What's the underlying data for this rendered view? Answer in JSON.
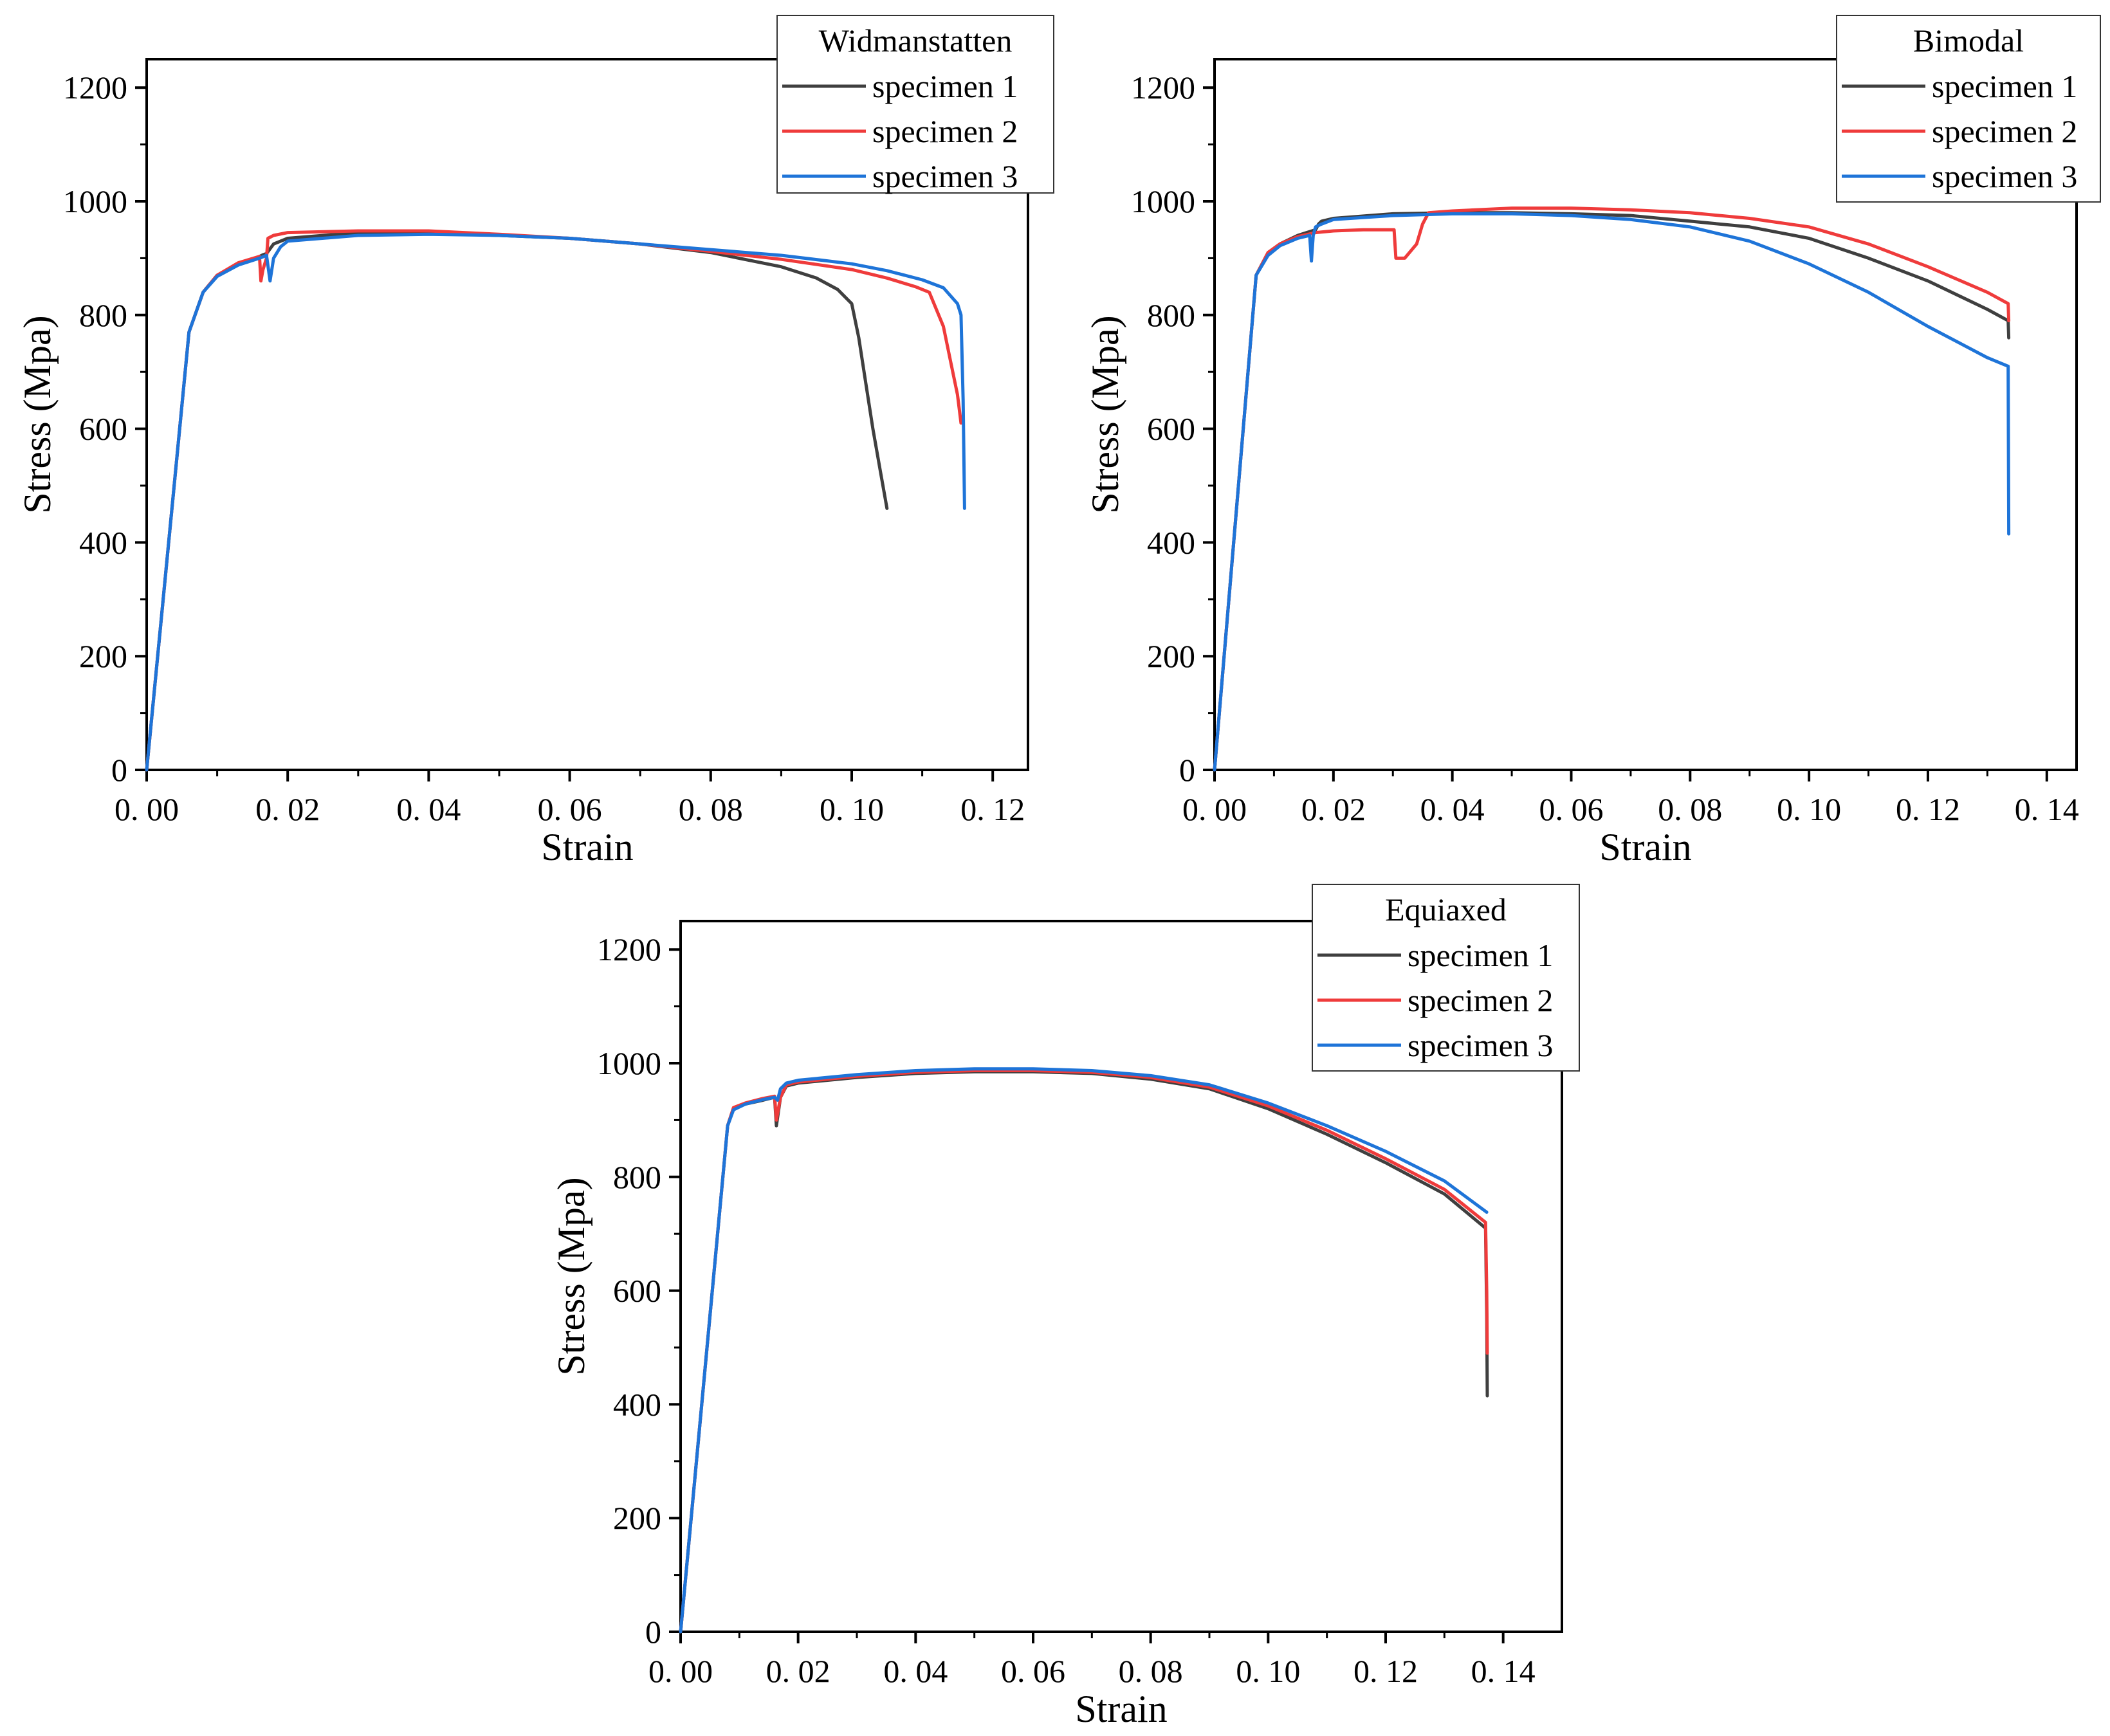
{
  "chart_data": [
    {
      "type": "line",
      "xlabel": "Strain",
      "ylabel": "Stress (Mpa)",
      "xlim": [
        0,
        0.125
      ],
      "ylim": [
        0,
        1250
      ],
      "xticks": [
        0,
        0.02,
        0.04,
        0.06,
        0.08,
        0.1,
        0.12
      ],
      "xtick_labels": [
        "0. 00",
        "0. 02",
        "0. 04",
        "0. 06",
        "0. 08",
        "0. 10",
        "0. 12"
      ],
      "yticks": [
        0,
        200,
        400,
        600,
        800,
        1000,
        1200
      ],
      "ytick_labels": [
        "0",
        "200",
        "400",
        "600",
        "800",
        "1000",
        "1200"
      ],
      "legend": {
        "title": "Widmanstatten",
        "position": "top-right"
      },
      "series": [
        {
          "name": "specimen 1",
          "color": "#3f3f3f",
          "x": [
            0,
            0.006,
            0.008,
            0.01,
            0.013,
            0.016,
            0.0165,
            0.017,
            0.018,
            0.02,
            0.03,
            0.04,
            0.05,
            0.06,
            0.07,
            0.08,
            0.09,
            0.095,
            0.098,
            0.1,
            0.101,
            0.102,
            0.103,
            0.104,
            0.105
          ],
          "y": [
            0,
            770,
            840,
            870,
            890,
            903,
            906,
            908,
            925,
            935,
            945,
            945,
            940,
            935,
            925,
            910,
            885,
            865,
            845,
            820,
            760,
            680,
            600,
            530,
            460
          ]
        },
        {
          "name": "specimen 2",
          "color": "#ef3b3b",
          "x": [
            0,
            0.006,
            0.008,
            0.01,
            0.013,
            0.016,
            0.0162,
            0.0165,
            0.017,
            0.0172,
            0.018,
            0.02,
            0.03,
            0.04,
            0.05,
            0.06,
            0.07,
            0.08,
            0.09,
            0.1,
            0.105,
            0.109,
            0.111,
            0.113,
            0.114,
            0.115,
            0.1155
          ],
          "y": [
            0,
            770,
            840,
            870,
            892,
            903,
            860,
            880,
            900,
            935,
            940,
            945,
            948,
            948,
            942,
            935,
            925,
            912,
            898,
            880,
            865,
            850,
            840,
            780,
            720,
            660,
            610
          ]
        },
        {
          "name": "specimen 3",
          "color": "#1e74d8",
          "x": [
            0,
            0.006,
            0.008,
            0.01,
            0.013,
            0.016,
            0.017,
            0.0175,
            0.018,
            0.019,
            0.02,
            0.03,
            0.04,
            0.05,
            0.06,
            0.07,
            0.08,
            0.09,
            0.1,
            0.105,
            0.11,
            0.113,
            0.115,
            0.1155,
            0.1158,
            0.116
          ],
          "y": [
            0,
            770,
            840,
            868,
            888,
            900,
            905,
            860,
            900,
            920,
            930,
            940,
            942,
            940,
            935,
            925,
            915,
            905,
            890,
            878,
            862,
            848,
            820,
            800,
            650,
            460
          ]
        }
      ]
    },
    {
      "type": "line",
      "xlabel": "Strain",
      "ylabel": "Stress (Mpa)",
      "xlim": [
        0,
        0.145
      ],
      "ylim": [
        0,
        1250
      ],
      "xticks": [
        0,
        0.02,
        0.04,
        0.06,
        0.08,
        0.1,
        0.12,
        0.14
      ],
      "xtick_labels": [
        "0. 00",
        "0. 02",
        "0. 04",
        "0. 06",
        "0. 08",
        "0. 10",
        "0. 12",
        "0. 14"
      ],
      "yticks": [
        0,
        200,
        400,
        600,
        800,
        1000,
        1200
      ],
      "ytick_labels": [
        "0",
        "200",
        "400",
        "600",
        "800",
        "1000",
        "1200"
      ],
      "legend": {
        "title": "Bimodal",
        "position": "top-right"
      },
      "series": [
        {
          "name": "specimen 1",
          "color": "#3f3f3f",
          "x": [
            0,
            0.007,
            0.009,
            0.011,
            0.014,
            0.017,
            0.0175,
            0.018,
            0.02,
            0.03,
            0.04,
            0.05,
            0.06,
            0.07,
            0.08,
            0.09,
            0.1,
            0.11,
            0.12,
            0.13,
            0.1335,
            0.1336
          ],
          "y": [
            0,
            870,
            910,
            925,
            940,
            950,
            960,
            965,
            970,
            978,
            980,
            980,
            978,
            975,
            965,
            955,
            935,
            900,
            860,
            810,
            790,
            760
          ]
        },
        {
          "name": "specimen 2",
          "color": "#ef3b3b",
          "x": [
            0,
            0.007,
            0.009,
            0.011,
            0.014,
            0.017,
            0.02,
            0.025,
            0.0302,
            0.0305,
            0.032,
            0.034,
            0.035,
            0.036,
            0.04,
            0.05,
            0.06,
            0.07,
            0.08,
            0.09,
            0.1,
            0.11,
            0.12,
            0.13,
            0.1335,
            0.1336
          ],
          "y": [
            0,
            870,
            910,
            925,
            938,
            945,
            948,
            950,
            950,
            900,
            900,
            925,
            960,
            980,
            983,
            988,
            988,
            985,
            980,
            970,
            955,
            925,
            885,
            840,
            820,
            790
          ]
        },
        {
          "name": "specimen 3",
          "color": "#1e74d8",
          "x": [
            0,
            0.007,
            0.009,
            0.011,
            0.014,
            0.016,
            0.0163,
            0.0166,
            0.017,
            0.018,
            0.02,
            0.03,
            0.04,
            0.05,
            0.06,
            0.07,
            0.08,
            0.09,
            0.1,
            0.11,
            0.12,
            0.13,
            0.1335,
            0.1336
          ],
          "y": [
            0,
            870,
            905,
            922,
            935,
            940,
            895,
            940,
            955,
            960,
            968,
            975,
            978,
            978,
            975,
            968,
            955,
            930,
            890,
            840,
            780,
            725,
            710,
            415
          ]
        }
      ]
    },
    {
      "type": "line",
      "xlabel": "Strain",
      "ylabel": "Stress (Mpa)",
      "xlim": [
        0,
        0.15
      ],
      "ylim": [
        0,
        1250
      ],
      "xticks": [
        0,
        0.02,
        0.04,
        0.06,
        0.08,
        0.1,
        0.12,
        0.14
      ],
      "xtick_labels": [
        "0. 00",
        "0. 02",
        "0. 04",
        "0. 06",
        "0. 08",
        "0. 10",
        "0. 12",
        "0. 14"
      ],
      "yticks": [
        0,
        200,
        400,
        600,
        800,
        1000,
        1200
      ],
      "ytick_labels": [
        "0",
        "200",
        "400",
        "600",
        "800",
        "1000",
        "1200"
      ],
      "legend": {
        "title": "Equiaxed",
        "position": "top-right"
      },
      "series": [
        {
          "name": "specimen 1",
          "color": "#3f3f3f",
          "x": [
            0,
            0.008,
            0.009,
            0.011,
            0.014,
            0.016,
            0.0163,
            0.017,
            0.018,
            0.02,
            0.03,
            0.04,
            0.05,
            0.06,
            0.07,
            0.08,
            0.09,
            0.1,
            0.11,
            0.12,
            0.13,
            0.137,
            0.1372,
            0.1373
          ],
          "y": [
            0,
            890,
            920,
            928,
            935,
            940,
            890,
            940,
            960,
            965,
            975,
            982,
            985,
            985,
            982,
            972,
            955,
            920,
            875,
            825,
            770,
            710,
            560,
            415
          ]
        },
        {
          "name": "specimen 2",
          "color": "#ef3b3b",
          "x": [
            0,
            0.008,
            0.009,
            0.011,
            0.014,
            0.016,
            0.0163,
            0.017,
            0.018,
            0.02,
            0.03,
            0.04,
            0.05,
            0.06,
            0.07,
            0.08,
            0.09,
            0.1,
            0.11,
            0.12,
            0.13,
            0.137,
            0.1372,
            0.1373
          ],
          "y": [
            0,
            890,
            922,
            930,
            938,
            942,
            900,
            940,
            962,
            967,
            977,
            984,
            987,
            987,
            984,
            975,
            958,
            925,
            882,
            832,
            778,
            720,
            600,
            490
          ]
        },
        {
          "name": "specimen 3",
          "color": "#1e74d8",
          "x": [
            0,
            0.008,
            0.009,
            0.011,
            0.014,
            0.016,
            0.0165,
            0.017,
            0.018,
            0.02,
            0.03,
            0.04,
            0.05,
            0.06,
            0.07,
            0.08,
            0.09,
            0.1,
            0.11,
            0.12,
            0.13,
            0.1372
          ],
          "y": [
            0,
            890,
            918,
            928,
            936,
            940,
            935,
            955,
            965,
            970,
            980,
            987,
            990,
            990,
            987,
            978,
            962,
            930,
            890,
            845,
            793,
            738
          ]
        }
      ]
    }
  ]
}
